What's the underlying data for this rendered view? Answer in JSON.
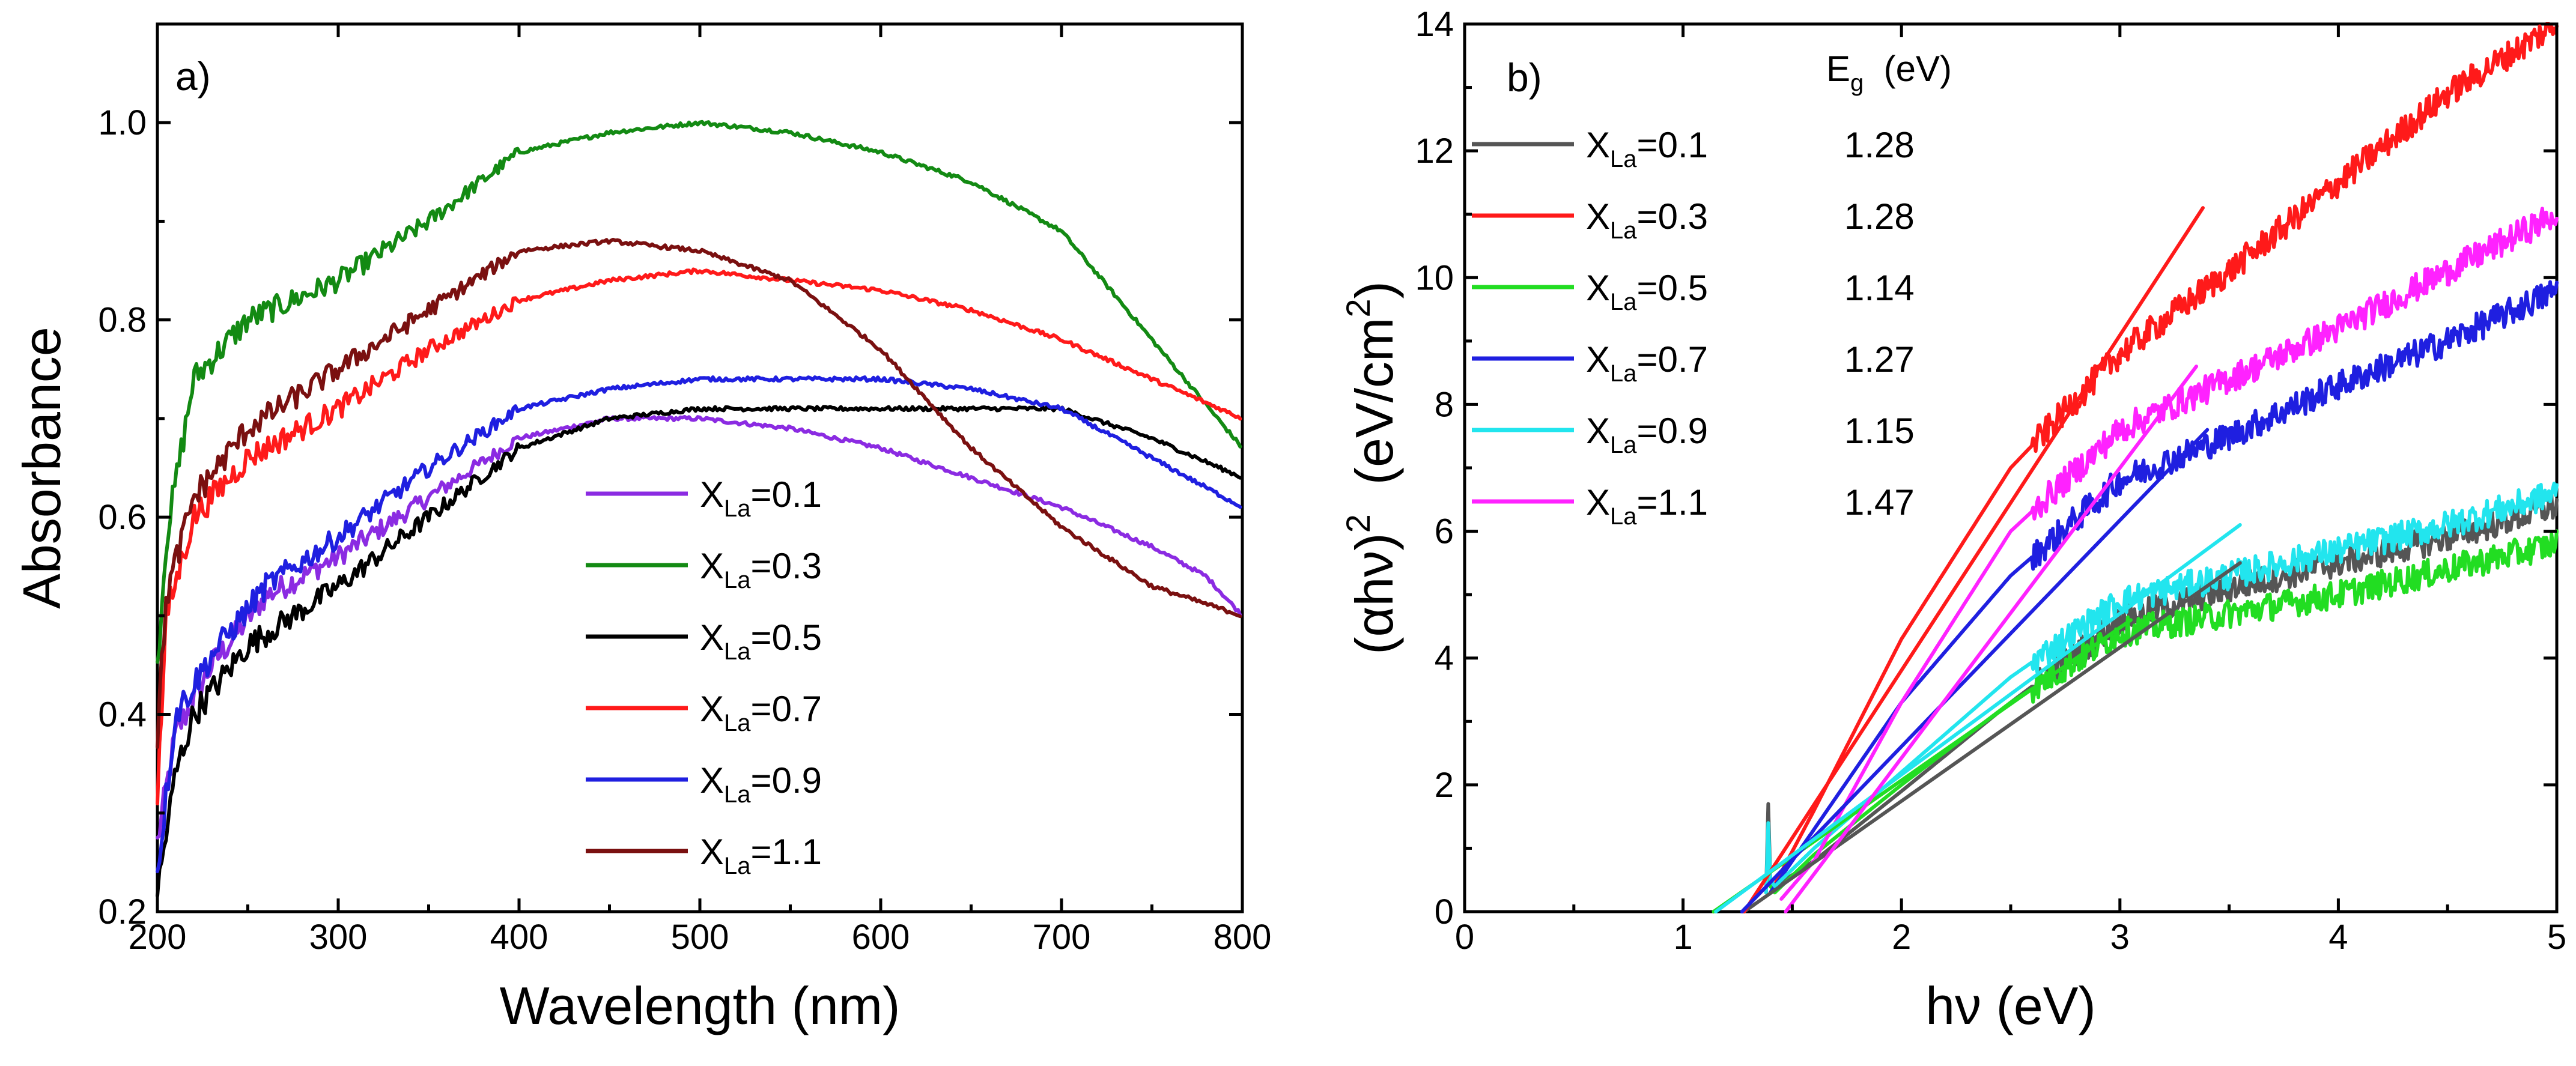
{
  "chart_data": [
    {
      "type": "line",
      "panel_label": "a)",
      "xlabel": "Wavelength  (nm)",
      "ylabel": "Absorbance",
      "xlim": [
        200,
        800
      ],
      "ylim": [
        0.2,
        1.1
      ],
      "xticks": [
        200,
        300,
        400,
        500,
        600,
        700,
        800
      ],
      "xtick_labels": [
        "200",
        "300",
        "400",
        "500",
        "600",
        "700",
        "800"
      ],
      "yticks": [
        0.2,
        0.4,
        0.6,
        0.8,
        1.0
      ],
      "ytick_labels": [
        "0.2",
        "0.4",
        "0.6",
        "0.8",
        "1.0"
      ],
      "legend_position": "bottom-center",
      "series": [
        {
          "name": "X_La=0.1",
          "label_main": "X",
          "label_sub": "La",
          "label_rest": "=0.1",
          "color": "#8b2be2",
          "x": [
            200,
            210,
            230,
            260,
            300,
            350,
            400,
            450,
            500,
            550,
            600,
            650,
            700,
            750,
            780,
            800
          ],
          "y": [
            0.27,
            0.38,
            0.45,
            0.52,
            0.56,
            0.62,
            0.68,
            0.7,
            0.7,
            0.69,
            0.67,
            0.64,
            0.61,
            0.57,
            0.54,
            0.5
          ]
        },
        {
          "name": "X_La=0.3",
          "label_main": "X",
          "label_sub": "La",
          "label_rest": "=0.3",
          "color": "#138a13",
          "x": [
            200,
            205,
            220,
            250,
            300,
            350,
            400,
            450,
            500,
            550,
            600,
            650,
            700,
            750,
            800
          ],
          "y": [
            0.45,
            0.58,
            0.74,
            0.8,
            0.84,
            0.9,
            0.97,
            0.99,
            1.0,
            0.99,
            0.97,
            0.94,
            0.89,
            0.78,
            0.67
          ]
        },
        {
          "name": "X_La=0.5",
          "label_main": "X",
          "label_sub": "La",
          "label_rest": "=0.5",
          "color": "#000000",
          "x": [
            200,
            210,
            220,
            250,
            300,
            350,
            400,
            450,
            500,
            550,
            600,
            650,
            700,
            750,
            800
          ],
          "y": [
            0.22,
            0.34,
            0.4,
            0.47,
            0.53,
            0.6,
            0.67,
            0.7,
            0.71,
            0.71,
            0.71,
            0.71,
            0.71,
            0.68,
            0.64
          ]
        },
        {
          "name": "X_La=0.7",
          "label_main": "X",
          "label_sub": "La",
          "label_rest": "=0.7",
          "color": "#ff1a1a",
          "x": [
            200,
            205,
            220,
            250,
            300,
            350,
            400,
            450,
            500,
            550,
            600,
            650,
            700,
            750,
            800
          ],
          "y": [
            0.32,
            0.5,
            0.6,
            0.66,
            0.71,
            0.77,
            0.82,
            0.84,
            0.85,
            0.84,
            0.83,
            0.81,
            0.78,
            0.74,
            0.7
          ]
        },
        {
          "name": "X_La=0.9",
          "label_main": "X",
          "label_sub": "La",
          "label_rest": "=0.9",
          "color": "#1f1fe0",
          "x": [
            200,
            210,
            230,
            260,
            300,
            350,
            400,
            450,
            500,
            550,
            600,
            650,
            700,
            750,
            800
          ],
          "y": [
            0.24,
            0.4,
            0.46,
            0.53,
            0.58,
            0.65,
            0.71,
            0.73,
            0.74,
            0.74,
            0.74,
            0.73,
            0.71,
            0.66,
            0.61
          ]
        },
        {
          "name": "X_La=1.1",
          "label_main": "X",
          "label_sub": "La",
          "label_rest": "=1.1",
          "color": "#7a1010",
          "x": [
            200,
            205,
            220,
            250,
            300,
            350,
            400,
            450,
            500,
            550,
            600,
            650,
            700,
            750,
            800
          ],
          "y": [
            0.38,
            0.52,
            0.62,
            0.69,
            0.75,
            0.81,
            0.87,
            0.88,
            0.87,
            0.84,
            0.77,
            0.67,
            0.59,
            0.53,
            0.5
          ]
        }
      ]
    },
    {
      "type": "line",
      "panel_label": "b)",
      "xlabel": "hν  (eV)",
      "ylabel_main": "(αhν)",
      "ylabel_sup": "2",
      "ylabel_unit": "  (eV/cm",
      "ylabel_unit_sup": "2",
      "ylabel_close": ")",
      "xlim": [
        0,
        5
      ],
      "ylim": [
        0,
        14
      ],
      "xticks": [
        0,
        1,
        2,
        3,
        4,
        5
      ],
      "xtick_labels": [
        "0",
        "1",
        "2",
        "3",
        "4",
        "5"
      ],
      "yticks": [
        0,
        2,
        4,
        6,
        8,
        10,
        12,
        14
      ],
      "ytick_labels": [
        "0",
        "2",
        "4",
        "6",
        "8",
        "10",
        "12",
        "14"
      ],
      "legend_position": "top-left",
      "legend_header_main": "E",
      "legend_header_sub": "g",
      "legend_header_rest": "  (eV)",
      "series": [
        {
          "name": "X_La=0.1",
          "label_main": "X",
          "label_sub": "La",
          "label_rest": "=0.1",
          "eg": "1.28",
          "color": "#555555",
          "x": [
            1.38,
            1.39,
            1.4,
            1.42,
            1.6,
            2.0,
            2.5,
            3.0,
            3.5,
            4.0,
            4.5,
            5.0
          ],
          "y": [
            0.3,
            1.7,
            0.5,
            0.4,
            0.8,
            1.9,
            3.3,
            4.6,
            5.1,
            5.5,
            5.9,
            6.4
          ],
          "fit_x": [
            1.28,
            3.55
          ],
          "fit_y": [
            0,
            5.5
          ]
        },
        {
          "name": "X_La=0.3",
          "label_main": "X",
          "label_sub": "La",
          "label_rest": "=0.3",
          "eg": "1.28",
          "color": "#ff1a1a",
          "x": [
            1.4,
            1.6,
            2.0,
            2.5,
            3.0,
            3.5,
            4.0,
            4.5,
            5.0
          ],
          "y": [
            0.3,
            1.6,
            4.3,
            7.0,
            8.8,
            10.1,
            11.5,
            12.9,
            14.0
          ],
          "fit_x": [
            1.28,
            3.38
          ],
          "fit_y": [
            0,
            11.1
          ]
        },
        {
          "name": "X_La=0.5",
          "label_main": "X",
          "label_sub": "La",
          "label_rest": "=0.5",
          "eg": "1.14",
          "color": "#22dd22",
          "x": [
            1.38,
            1.39,
            1.4,
            1.42,
            1.6,
            2.0,
            2.5,
            3.0,
            3.5,
            4.0,
            4.5,
            5.0
          ],
          "y": [
            0.3,
            1.2,
            0.4,
            0.3,
            0.9,
            2.0,
            3.3,
            4.4,
            4.7,
            5.0,
            5.4,
            5.8
          ],
          "fit_x": [
            1.14,
            3.05
          ],
          "fit_y": [
            0,
            4.6
          ]
        },
        {
          "name": "X_La=0.7",
          "label_main": "X",
          "label_sub": "La",
          "label_rest": "=0.7",
          "eg": "1.27",
          "color": "#1f1fe0",
          "x": [
            1.4,
            1.6,
            2.0,
            2.5,
            3.0,
            3.5,
            4.0,
            4.5,
            5.0
          ],
          "y": [
            0.3,
            1.3,
            3.3,
            5.3,
            6.8,
            7.5,
            8.3,
            9.0,
            9.8
          ],
          "fit_x": [
            1.27,
            3.4
          ],
          "fit_y": [
            0,
            7.6
          ]
        },
        {
          "name": "X_La=0.9",
          "label_main": "X",
          "label_sub": "La",
          "label_rest": "=0.9",
          "eg": "1.15",
          "color": "#22e5ee",
          "x": [
            1.38,
            1.39,
            1.4,
            1.42,
            1.6,
            2.0,
            2.5,
            3.0,
            3.5,
            4.0,
            4.5,
            5.0
          ],
          "y": [
            0.3,
            1.4,
            0.5,
            0.4,
            1.0,
            2.2,
            3.7,
            4.9,
            5.3,
            5.7,
            6.1,
            6.6
          ],
          "fit_x": [
            1.15,
            3.55
          ],
          "fit_y": [
            0,
            6.1
          ]
        },
        {
          "name": "X_La=1.1",
          "label_main": "X",
          "label_sub": "La",
          "label_rest": "=1.1",
          "eg": "1.47",
          "color": "#ff22ff",
          "x": [
            1.45,
            1.6,
            2.0,
            2.5,
            3.0,
            3.5,
            4.0,
            4.5,
            5.0
          ],
          "y": [
            0.2,
            0.8,
            3.3,
            6.0,
            7.6,
            8.4,
            9.2,
            10.1,
            11.0
          ],
          "fit_x": [
            1.47,
            3.35
          ],
          "fit_y": [
            0,
            8.6
          ]
        }
      ]
    }
  ]
}
